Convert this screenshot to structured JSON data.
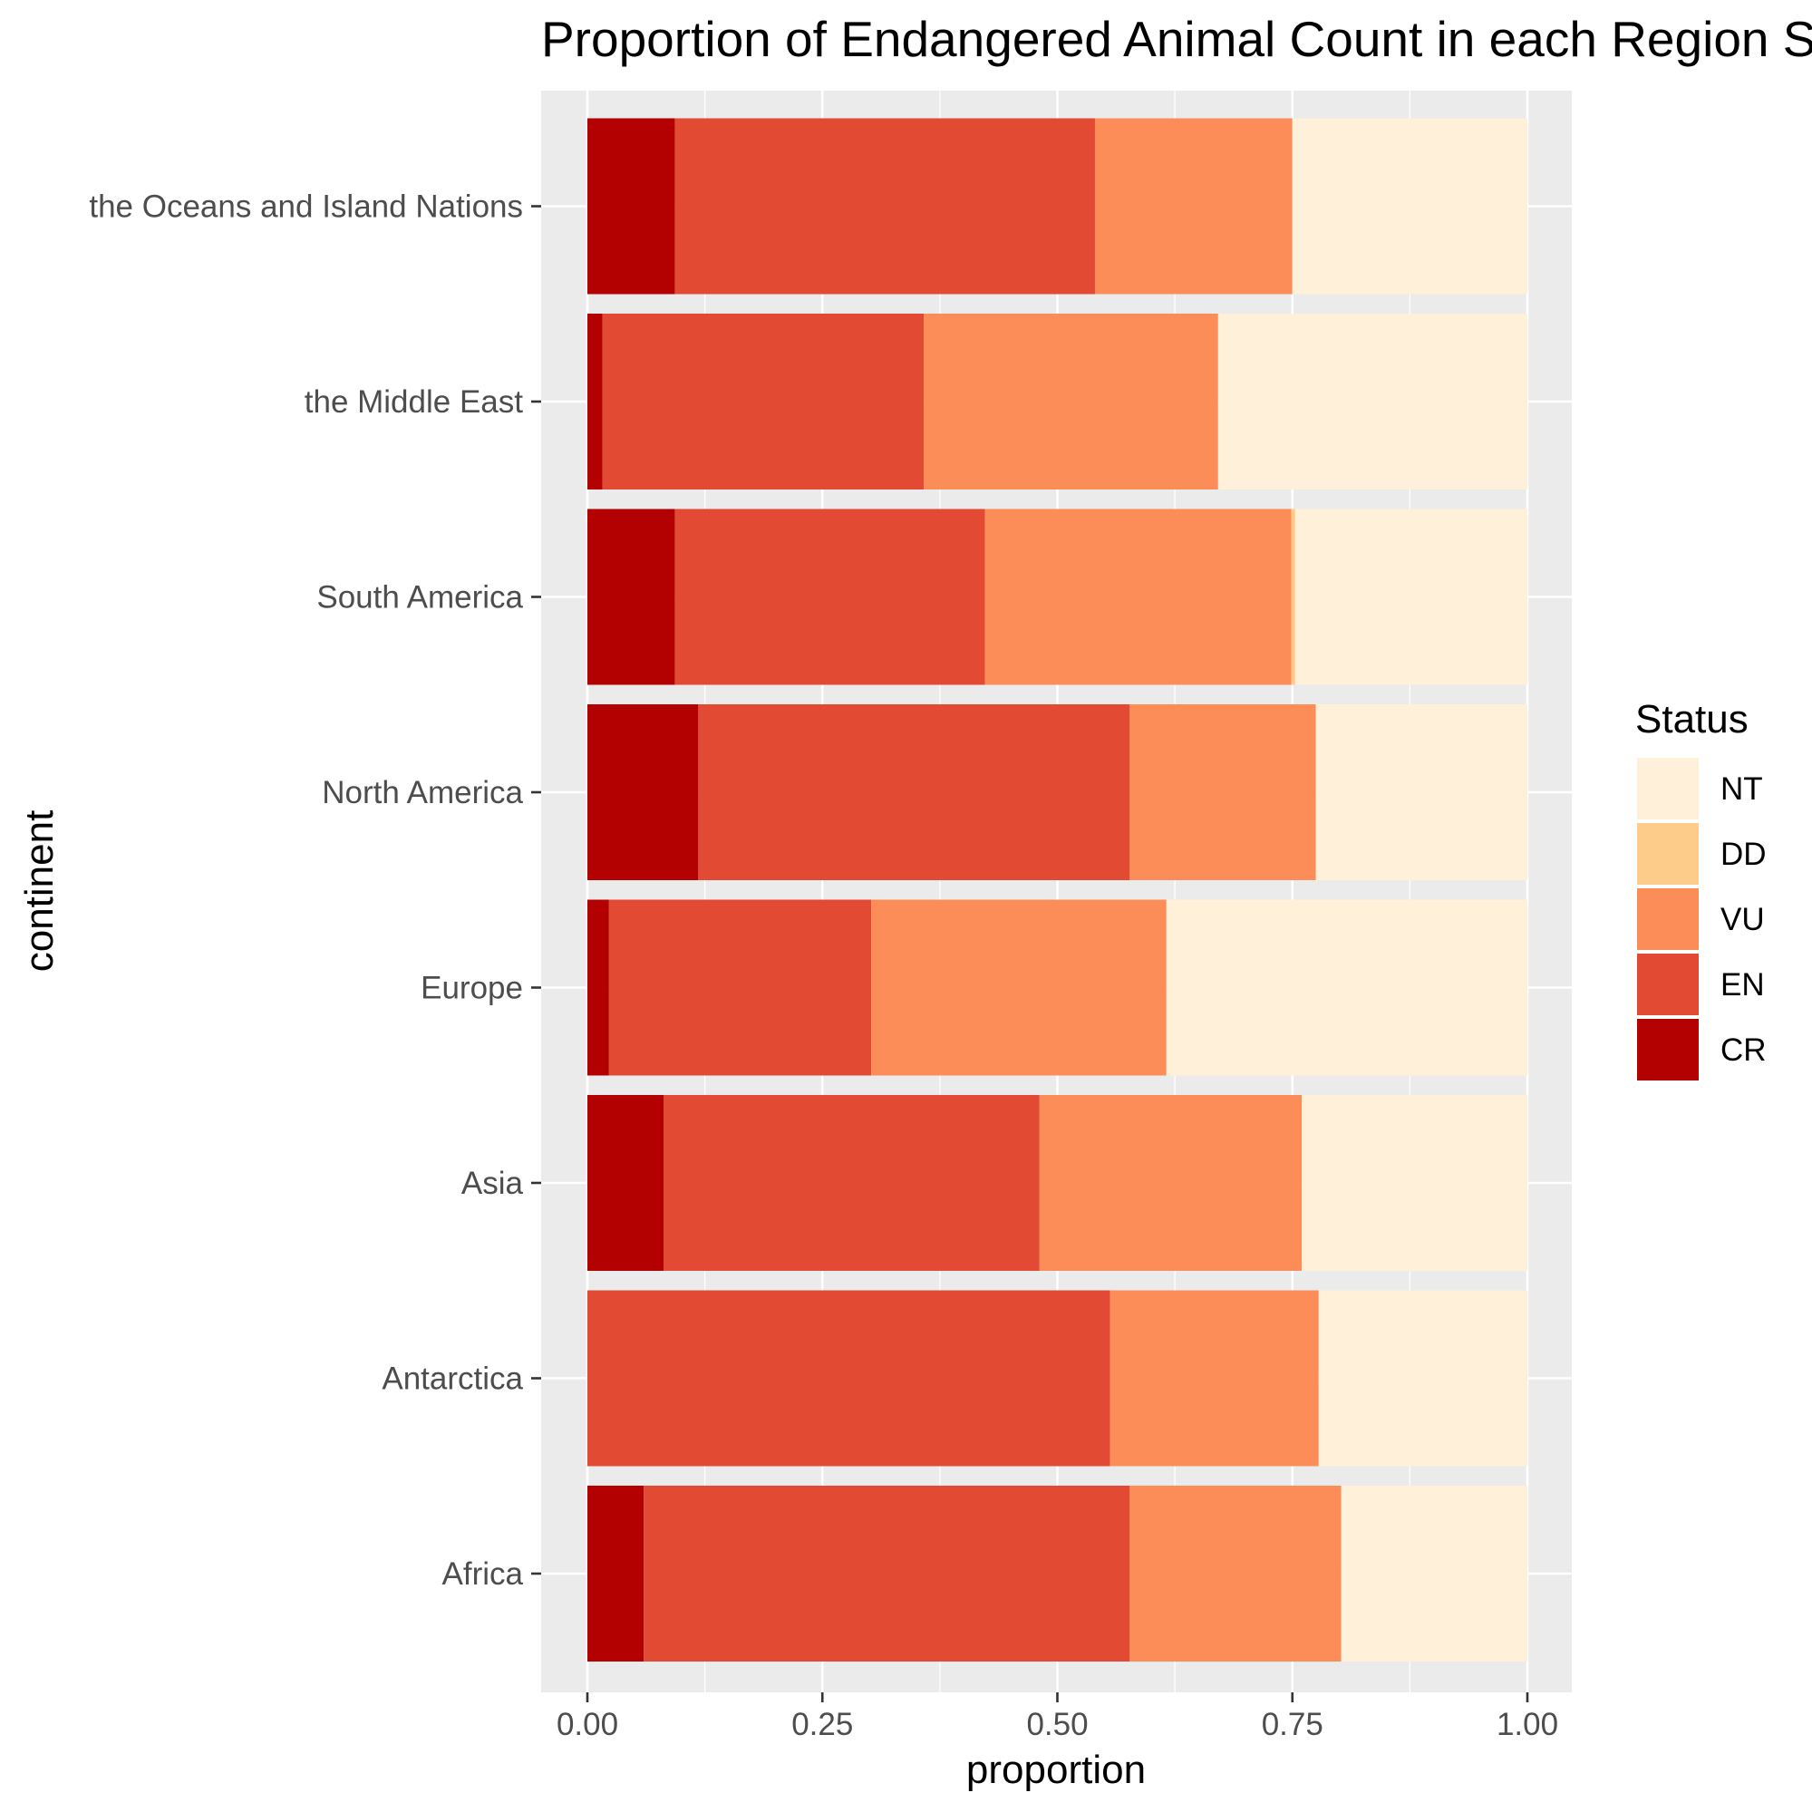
{
  "chart_data": {
    "type": "bar",
    "orientation": "horizontal",
    "stacked": true,
    "title": "Proportion of Endangered Animal Count in each Region S",
    "xlabel": "proportion",
    "ylabel": "continent",
    "xlim": [
      0,
      1
    ],
    "x_ticks": [
      "0.00",
      "0.25",
      "0.50",
      "0.75",
      "1.00"
    ],
    "grid": true,
    "legend_position": "right",
    "categories": [
      "Africa",
      "Antarctica",
      "Asia",
      "Europe",
      "North America",
      "South America",
      "the Middle East",
      "the Oceans and Island Nations"
    ],
    "legend": {
      "title": "Status",
      "items": [
        {
          "label": "NT",
          "color": "#fef0d9"
        },
        {
          "label": "DD",
          "color": "#fdcc8a"
        },
        {
          "label": "VU",
          "color": "#fc8d59"
        },
        {
          "label": "EN",
          "color": "#e34a33"
        },
        {
          "label": "CR",
          "color": "#b30000"
        }
      ]
    },
    "series": [
      {
        "name": "CR",
        "color": "#b30000",
        "values": [
          0.06,
          0.0,
          0.081,
          0.023,
          0.118,
          0.093,
          0.016,
          0.093
        ]
      },
      {
        "name": "EN",
        "color": "#e34a33",
        "values": [
          0.517,
          0.556,
          0.4,
          0.279,
          0.459,
          0.33,
          0.342,
          0.447
        ]
      },
      {
        "name": "VU",
        "color": "#fc8d59",
        "values": [
          0.225,
          0.222,
          0.279,
          0.314,
          0.198,
          0.326,
          0.313,
          0.21
        ]
      },
      {
        "name": "DD",
        "color": "#fdcc8a",
        "values": [
          0.0,
          0.0,
          0.0,
          0.0,
          0.0,
          0.004,
          0.0,
          0.0
        ]
      },
      {
        "name": "NT",
        "color": "#fef0d9",
        "values": [
          0.198,
          0.222,
          0.24,
          0.384,
          0.225,
          0.247,
          0.329,
          0.25
        ]
      }
    ]
  }
}
